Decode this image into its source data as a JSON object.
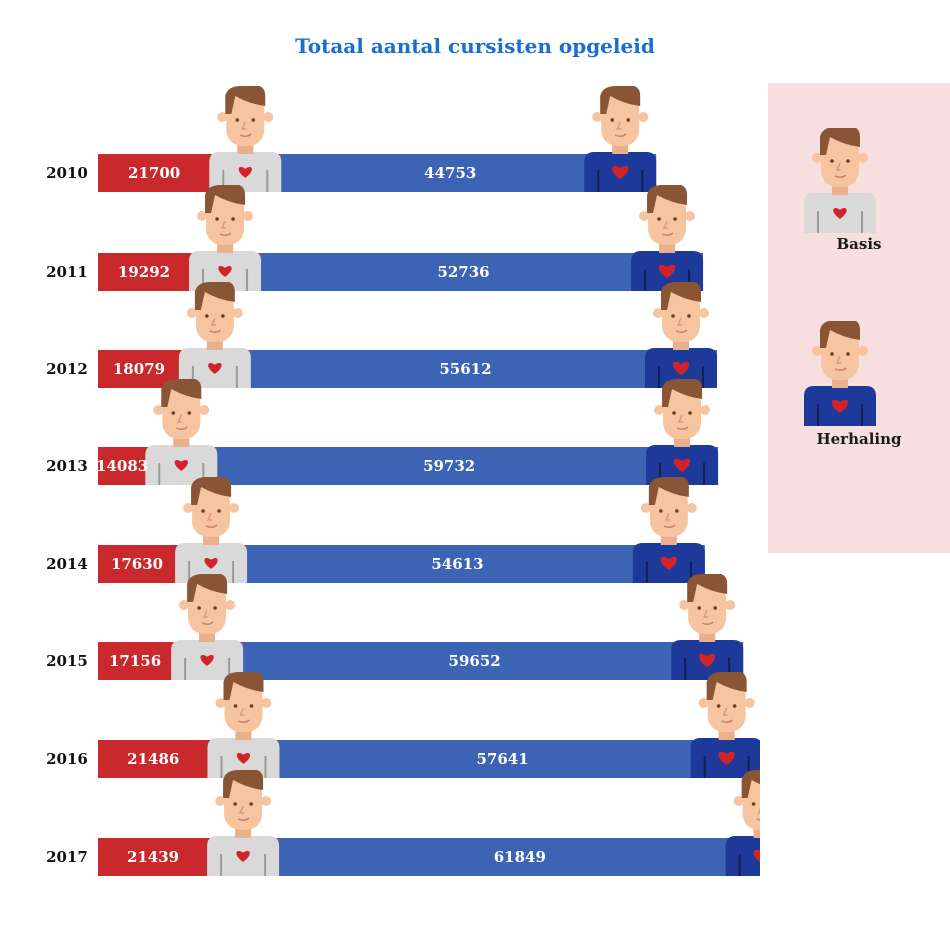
{
  "title": "Totaal aantal cursisten opgeleid",
  "legend": {
    "basis": "Basis",
    "herhaling": "Herhaling"
  },
  "colors": {
    "basis_bar": "#c9282d",
    "herhaling_bar": "#3d64b4",
    "basis_shirt": "#d9d9d9",
    "herhaling_shirt": "#1d3a9a",
    "heart": "#d1232a",
    "skin": "#f7c4a0",
    "hair": "#8a5535",
    "title": "#1a6fce",
    "legend_bg": "#f7dedf"
  },
  "icons": {
    "basis": "person-grey-shirt-heart-icon",
    "herhaling": "person-blue-shirt-heart-icon"
  },
  "chart_data": {
    "type": "bar",
    "orientation": "horizontal",
    "stacked": true,
    "title": "Totaal aantal cursisten opgeleid",
    "categories": [
      "2010",
      "2011",
      "2012",
      "2013",
      "2014",
      "2015",
      "2016",
      "2017"
    ],
    "series": [
      {
        "name": "Basis",
        "values": [
          21700,
          19292,
          18079,
          14083,
          17630,
          17156,
          21486,
          21439
        ]
      },
      {
        "name": "Herhaling",
        "values": [
          44753,
          52736,
          55612,
          59732,
          54613,
          59652,
          57641,
          61849
        ]
      }
    ],
    "legend": "right"
  }
}
